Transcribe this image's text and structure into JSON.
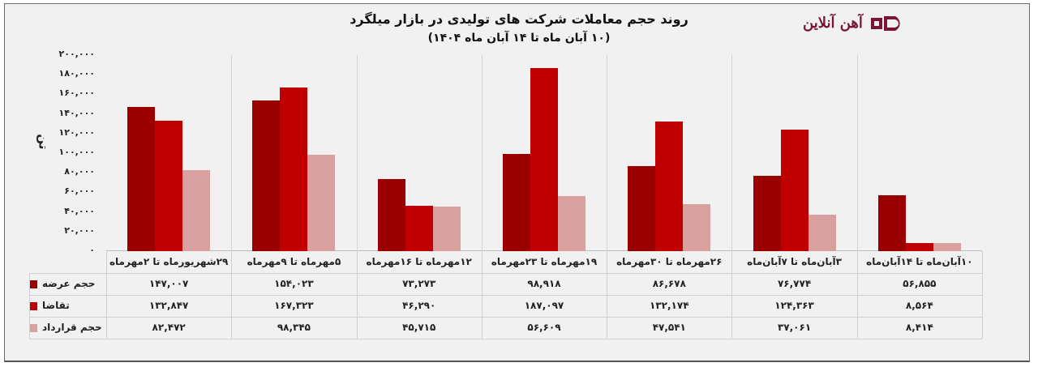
{
  "header": {
    "title_line1": "روند حجم معاملات شرکت های تولیدی در بازار میلگرد",
    "title_line2": "(۱۰ آبان ماه تا ۱۴ آبان ماه ۱۴۰۴)"
  },
  "logo": {
    "text": "آهن آنلاین",
    "mark": "aD",
    "color": "#7a1535"
  },
  "colors": {
    "supply": "#9b0000",
    "demand": "#c00000",
    "contract": "#d9a0a0",
    "background": "#f1f1f1"
  },
  "y_axis": {
    "label": "تن",
    "ticks": [
      "۲۰۰,۰۰۰",
      "۱۸۰,۰۰۰",
      "۱۶۰,۰۰۰",
      "۱۴۰,۰۰۰",
      "۱۲۰,۰۰۰",
      "۱۰۰,۰۰۰",
      "۸۰,۰۰۰",
      "۶۰,۰۰۰",
      "۴۰,۰۰۰",
      "۲۰,۰۰۰",
      "۰"
    ]
  },
  "table": {
    "legend": [
      {
        "label": "حجم عرضه",
        "color": "#9b0000"
      },
      {
        "label": "تقاضا",
        "color": "#c00000"
      },
      {
        "label": "حجم قرارداد",
        "color": "#d9a0a0"
      }
    ],
    "columns": [
      "۲۹شهریورماه تا ۲مهرماه",
      "۵مهرماه تا ۹مهرماه",
      "۱۲مهرماه تا ۱۶مهرماه",
      "۱۹مهرماه تا ۲۳مهرماه",
      "۲۶مهرماه تا ۳۰مهرماه",
      "۳آبان‌ماه تا ۷آبان‌ماه",
      "۱۰آبان‌ماه تا ۱۴آبان‌ماه"
    ],
    "rows": [
      [
        "۱۴۷,۰۰۷",
        "۱۵۴,۰۲۳",
        "۷۳,۲۷۳",
        "۹۸,۹۱۸",
        "۸۶,۶۷۸",
        "۷۶,۷۷۴",
        "۵۶,۸۵۵"
      ],
      [
        "۱۳۲,۸۴۷",
        "۱۶۷,۳۲۳",
        "۴۶,۲۹۰",
        "۱۸۷,۰۹۷",
        "۱۳۲,۱۷۴",
        "۱۲۴,۳۶۳",
        "۸,۵۶۴"
      ],
      [
        "۸۲,۴۷۲",
        "۹۸,۳۴۵",
        "۴۵,۷۱۵",
        "۵۶,۶۰۹",
        "۴۷,۵۴۱",
        "۳۷,۰۶۱",
        "۸,۴۱۴"
      ]
    ]
  },
  "chart_data": {
    "type": "bar",
    "title": "روند حجم معاملات شرکت های تولیدی در بازار میلگرد (۱۰ آبان ماه تا ۱۴ آبان ماه ۱۴۰۴)",
    "xlabel": "",
    "ylabel": "تن",
    "ylim": [
      0,
      200000
    ],
    "y_ticks": [
      0,
      20000,
      40000,
      60000,
      80000,
      100000,
      120000,
      140000,
      160000,
      180000,
      200000
    ],
    "grid": "vertical separators between groups",
    "legend_position": "data table (left column)",
    "categories": [
      "۲۹شهریورماه تا ۲مهرماه",
      "۵مهرماه تا ۹مهرماه",
      "۱۲مهرماه تا ۱۶مهرماه",
      "۱۹مهرماه تا ۲۳مهرماه",
      "۲۶مهرماه تا ۳۰مهرماه",
      "۳آبان‌ماه تا ۷آبان‌ماه",
      "۱۰آبان‌ماه تا ۱۴آبان‌ماه"
    ],
    "series": [
      {
        "name": "حجم عرضه",
        "color": "#9b0000",
        "values": [
          147007,
          154023,
          73273,
          98918,
          86678,
          76774,
          56855
        ]
      },
      {
        "name": "تقاضا",
        "color": "#c00000",
        "values": [
          132847,
          167323,
          46290,
          187097,
          132174,
          124363,
          8564
        ]
      },
      {
        "name": "حجم قرارداد",
        "color": "#d9a0a0",
        "values": [
          82472,
          98345,
          45715,
          56609,
          47541,
          37061,
          8414
        ]
      }
    ]
  }
}
